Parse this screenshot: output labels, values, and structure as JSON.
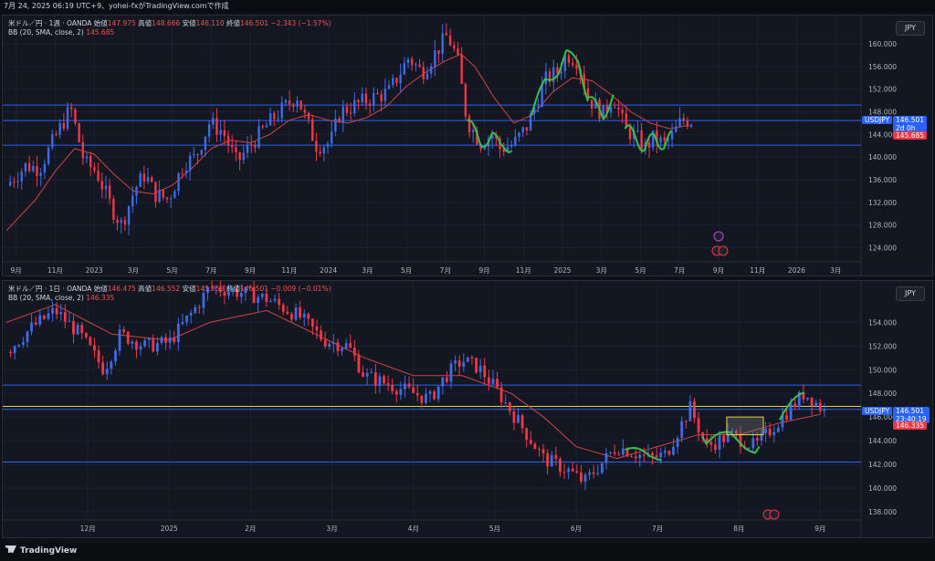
{
  "topbar": {
    "text": "7月 24, 2025 06:19 UTC+9、yohei-fxがTradingView.comで作成"
  },
  "footer": {
    "logo": "TradingView"
  },
  "chart_data": [
    {
      "type": "candlestick",
      "legend": {
        "symbol": "米ドル／円 · 1週 · OANDA",
        "open_label": "始値",
        "open": "147.975",
        "high_label": "高値",
        "high": "148.666",
        "low_label": "安値",
        "low": "146.110",
        "close_label": "終値",
        "close": "146.501",
        "change": "−2.343 (−1.57%)",
        "bb_label": "BB (20, SMA, close, 2)",
        "bb_value": "145.685"
      },
      "currency": "JPY",
      "ylim": [
        121.5,
        165
      ],
      "y_ticks": [
        "124.000",
        "128.000",
        "132.000",
        "136.000",
        "140.000",
        "144.000",
        "148.000",
        "152.000",
        "156.000",
        "160.000"
      ],
      "y_tick_values": [
        124,
        128,
        132,
        136,
        140,
        144,
        148,
        152,
        156,
        160
      ],
      "x_ticks": [
        "9月",
        "11月",
        "2023",
        "3月",
        "5月",
        "7月",
        "9月",
        "11月",
        "2024",
        "3月",
        "5月",
        "7月",
        "9月",
        "11月",
        "2025",
        "3月",
        "5月",
        "7月",
        "9月",
        "11月",
        "2026",
        "3月"
      ],
      "x_tick_months": [
        8,
        10,
        12,
        14,
        16,
        18,
        20,
        22,
        24,
        26,
        28,
        30,
        32,
        34,
        36,
        38,
        40,
        42,
        44,
        46,
        48,
        50
      ],
      "x_range": [
        7.5,
        51.3
      ],
      "price_tag": {
        "symbol": "USDJPY",
        "price": "146.501",
        "countdown": "2d 0h",
        "bb": "145.685",
        "price_value": 146.501,
        "bb_value": 145.685
      },
      "hlines": [
        149.2,
        146.45,
        142.1
      ],
      "anchors": [
        [
          7.5,
          135
        ],
        [
          8.5,
          138.5
        ],
        [
          9.2,
          138
        ],
        [
          10.3,
          145.5
        ],
        [
          10.8,
          148.6
        ],
        [
          11.1,
          144.5
        ],
        [
          11.5,
          139
        ],
        [
          12.1,
          137.5
        ],
        [
          12.9,
          131
        ],
        [
          13.4,
          128
        ],
        [
          14.1,
          134.5
        ],
        [
          14.6,
          137
        ],
        [
          15.1,
          133.5
        ],
        [
          15.8,
          132.5
        ],
        [
          16.6,
          139
        ],
        [
          17.2,
          140
        ],
        [
          17.9,
          146
        ],
        [
          18.6,
          144.5
        ],
        [
          19.3,
          139
        ],
        [
          20.1,
          142.5
        ],
        [
          21.2,
          147
        ],
        [
          22.4,
          150.8
        ],
        [
          22.8,
          147
        ],
        [
          23.4,
          142
        ],
        [
          24.1,
          142.5
        ],
        [
          24.6,
          148
        ],
        [
          25.6,
          149.5
        ],
        [
          26.3,
          150.5
        ],
        [
          27.1,
          151.5
        ],
        [
          28.1,
          157.5
        ],
        [
          28.8,
          155
        ],
        [
          29.5,
          158.5
        ],
        [
          30.1,
          161.5
        ],
        [
          30.6,
          157.5
        ],
        [
          31.1,
          146.5
        ],
        [
          31.8,
          142.5
        ],
        [
          32.4,
          144
        ],
        [
          32.8,
          141.5
        ],
        [
          33.5,
          142.3
        ],
        [
          34.2,
          145.5
        ],
        [
          35.1,
          153.5
        ],
        [
          35.8,
          155.2
        ],
        [
          36.2,
          158.2
        ],
        [
          36.8,
          157
        ],
        [
          37.3,
          150.5
        ],
        [
          38.1,
          147.5
        ],
        [
          38.6,
          150.8
        ],
        [
          39.2,
          145
        ],
        [
          39.8,
          143.5
        ],
        [
          40.2,
          141.5
        ],
        [
          40.7,
          143.5
        ],
        [
          41.2,
          142.2
        ],
        [
          41.6,
          143.5
        ],
        [
          42.1,
          146.5
        ],
        [
          42.6,
          146.5
        ]
      ],
      "bb_mid": [
        [
          7.5,
          127
        ],
        [
          9,
          132.5
        ],
        [
          10,
          137.5
        ],
        [
          11,
          141.5
        ],
        [
          12,
          140.5
        ],
        [
          13,
          137
        ],
        [
          14,
          134
        ],
        [
          15,
          133.5
        ],
        [
          16,
          135
        ],
        [
          17,
          138
        ],
        [
          18,
          141.5
        ],
        [
          19,
          143
        ],
        [
          20,
          142.5
        ],
        [
          21,
          144
        ],
        [
          22,
          146.5
        ],
        [
          23,
          147.5
        ],
        [
          24,
          146.5
        ],
        [
          25,
          146
        ],
        [
          26,
          147
        ],
        [
          27,
          149
        ],
        [
          28,
          152.5
        ],
        [
          29,
          155
        ],
        [
          30,
          157
        ],
        [
          30.8,
          158.2
        ],
        [
          31.5,
          156
        ],
        [
          32.5,
          150.5
        ],
        [
          33.5,
          146
        ],
        [
          34.5,
          147.5
        ],
        [
          35.5,
          151.5
        ],
        [
          36.5,
          154
        ],
        [
          37.5,
          153.5
        ],
        [
          38.5,
          151
        ],
        [
          39.5,
          148
        ],
        [
          40.5,
          146
        ],
        [
          41.5,
          145
        ],
        [
          42.6,
          145.7
        ]
      ]
    },
    {
      "type": "candlestick",
      "legend": {
        "symbol": "米ドル／円 · 1日 · OANDA",
        "open_label": "始値",
        "open": "146.475",
        "high_label": "高値",
        "high": "146.552",
        "low_label": "安値",
        "low": "145.853",
        "close_label": "終値",
        "close": "146.501",
        "change": "−0.009 (−0.01%)",
        "bb_label": "BB (20, SMA, close, 2)",
        "bb_value": "146.335"
      },
      "currency": "JPY",
      "ylim": [
        137.3,
        157.5
      ],
      "y_ticks": [
        "138.000",
        "140.000",
        "142.000",
        "144.000",
        "146.000",
        "148.000",
        "150.000",
        "152.000",
        "154.000"
      ],
      "y_tick_values": [
        138,
        140,
        142,
        144,
        146,
        148,
        150,
        152,
        154
      ],
      "x_ticks": [
        "12月",
        "2025",
        "2月",
        "3月",
        "4月",
        "5月",
        "6月",
        "7月",
        "8月",
        "9月"
      ],
      "x_tick_months": [
        12,
        13,
        14,
        15,
        16,
        17,
        18,
        19,
        20,
        21
      ],
      "x_range": [
        11.0,
        21.5
      ],
      "price_tag": {
        "symbol": "USDJPY",
        "price": "146.501",
        "countdown": "23:40:19",
        "bb": "146.335",
        "price_value": 146.501,
        "bb_value": 146.335
      },
      "hlines": [
        148.7,
        146.65,
        142.2
      ],
      "yellow_line": 146.9,
      "yellow_box": {
        "x": [
          19.85,
          20.3
        ],
        "y": [
          144.5,
          146.0
        ]
      },
      "anchors": [
        [
          11.0,
          151.5
        ],
        [
          11.3,
          153.5
        ],
        [
          11.6,
          155
        ],
        [
          11.9,
          153
        ],
        [
          12.1,
          151
        ],
        [
          12.2,
          150
        ],
        [
          12.4,
          153
        ],
        [
          12.7,
          152
        ],
        [
          13.0,
          152.3
        ],
        [
          13.3,
          155
        ],
        [
          13.5,
          157
        ],
        [
          13.9,
          156.5
        ],
        [
          14.2,
          156
        ],
        [
          14.6,
          154.5
        ],
        [
          14.9,
          152.5
        ],
        [
          15.2,
          152
        ],
        [
          15.4,
          149.5
        ],
        [
          15.8,
          148.5
        ],
        [
          16.2,
          147.5
        ],
        [
          16.4,
          149.5
        ],
        [
          16.6,
          150.8
        ],
        [
          16.8,
          150.2
        ],
        [
          17.0,
          148.5
        ],
        [
          17.2,
          146.5
        ],
        [
          17.4,
          144.5
        ],
        [
          17.6,
          142.5
        ],
        [
          17.9,
          141.5
        ],
        [
          18.1,
          140.5
        ],
        [
          18.5,
          143.5
        ],
        [
          18.9,
          142.5
        ],
        [
          19.1,
          142.8
        ],
        [
          19.4,
          146.8
        ],
        [
          19.6,
          143.5
        ],
        [
          19.9,
          144.5
        ],
        [
          20.2,
          143.5
        ],
        [
          20.4,
          145
        ],
        [
          20.8,
          148
        ],
        [
          20.9,
          147.5
        ],
        [
          21.05,
          146.5
        ]
      ],
      "bb_mid": [
        [
          11.0,
          154
        ],
        [
          11.6,
          155.5
        ],
        [
          12.3,
          153
        ],
        [
          13.0,
          152.5
        ],
        [
          13.5,
          154
        ],
        [
          14.2,
          155
        ],
        [
          14.8,
          153
        ],
        [
          15.4,
          151
        ],
        [
          16.0,
          149.5
        ],
        [
          16.6,
          149.5
        ],
        [
          17.2,
          148
        ],
        [
          17.6,
          146
        ],
        [
          18.0,
          143.5
        ],
        [
          18.5,
          142.5
        ],
        [
          19.0,
          143.5
        ],
        [
          19.5,
          144.5
        ],
        [
          20.0,
          144.5
        ],
        [
          20.5,
          145.5
        ],
        [
          21.05,
          146.3
        ]
      ]
    }
  ]
}
